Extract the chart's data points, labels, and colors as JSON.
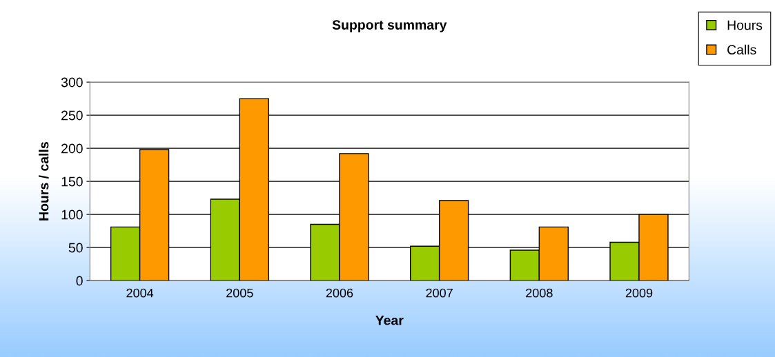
{
  "chart_data": {
    "type": "bar",
    "title": "Support summary",
    "xlabel": "Year",
    "ylabel": "Hours / calls",
    "categories": [
      "2004",
      "2005",
      "2006",
      "2007",
      "2008",
      "2009"
    ],
    "series": [
      {
        "name": "Hours",
        "color": "#99cc00",
        "values": [
          81,
          123,
          85,
          52,
          46,
          58
        ]
      },
      {
        "name": "Calls",
        "color": "#ff9900",
        "values": [
          198,
          275,
          192,
          121,
          81,
          100
        ]
      }
    ],
    "ylim": [
      0,
      300
    ],
    "yticks": [
      0,
      50,
      100,
      150,
      200,
      250,
      300
    ],
    "grid": "y",
    "legend": "top right"
  }
}
